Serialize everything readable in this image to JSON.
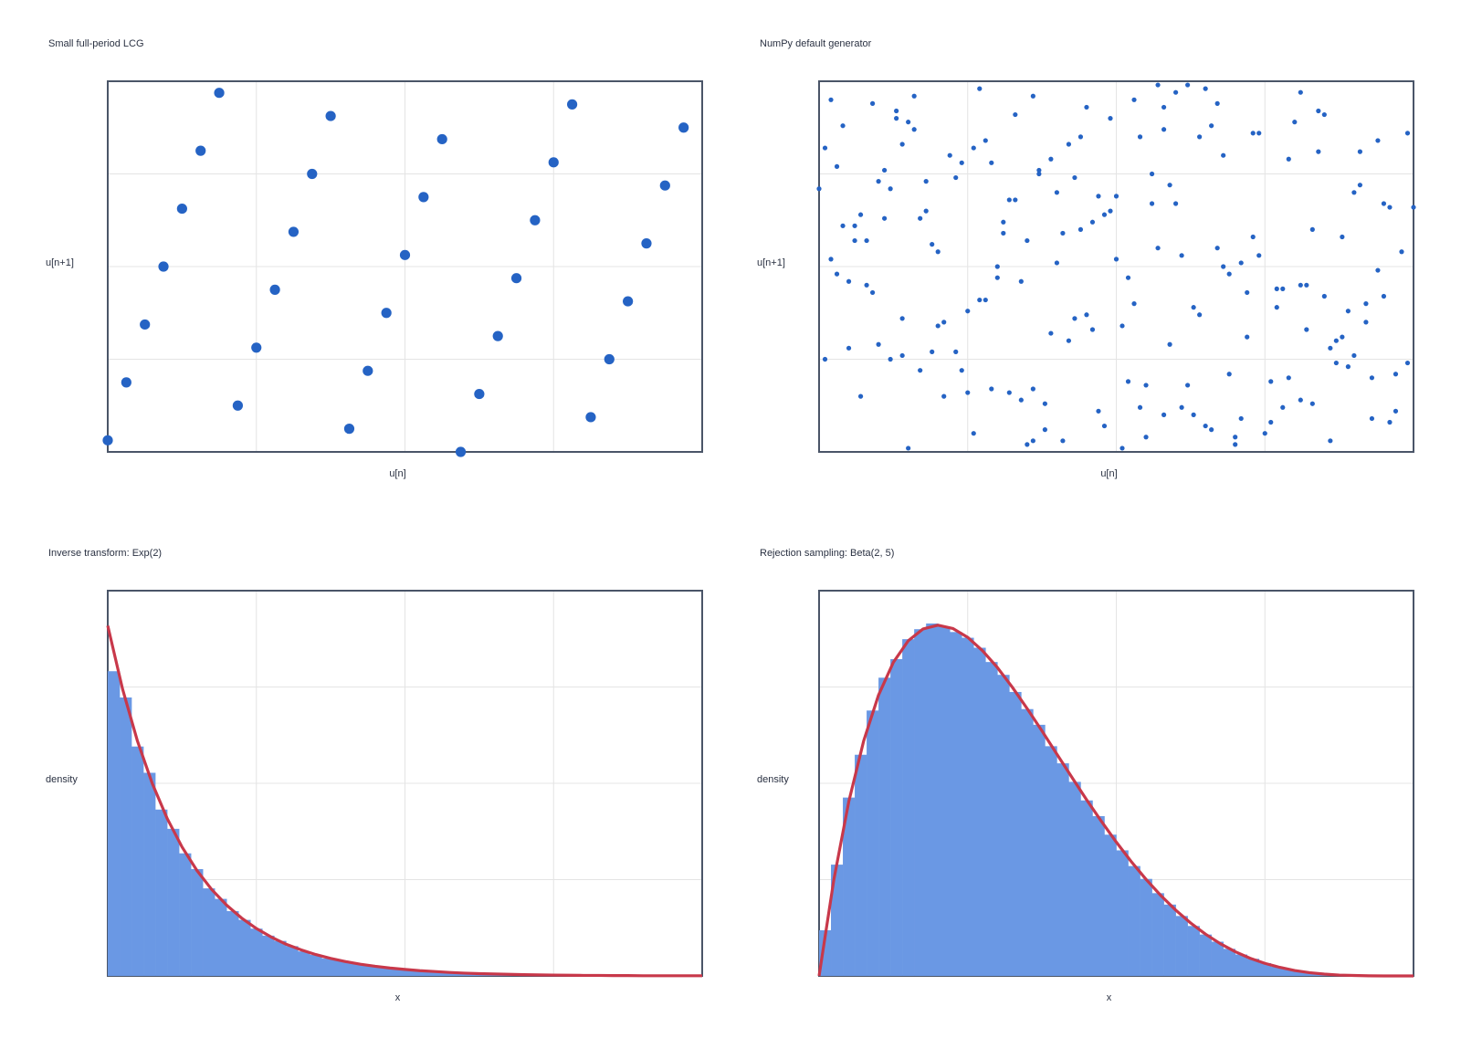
{
  "chart_data": [
    {
      "type": "scatter",
      "title": "Small full-period LCG",
      "xlabel": "u[n]",
      "ylabel": "u[n+1]",
      "color": "#2563c4",
      "x": [
        0,
        0.03125,
        0.0625,
        0.09375,
        0.125,
        0.15625,
        0.1875,
        0.21875,
        0.25,
        0.28125,
        0.3125,
        0.34375,
        0.375,
        0.40625,
        0.4375,
        0.46875,
        0.5,
        0.53125,
        0.5625,
        0.59375,
        0.625,
        0.65625,
        0.6875,
        0.71875,
        0.75,
        0.78125,
        0.8125,
        0.84375,
        0.875,
        0.90625,
        0.9375,
        0.96875
      ],
      "values": [
        0.03125,
        0.1875,
        0.34375,
        0.5,
        0.65625,
        0.8125,
        0.96875,
        0.125,
        0.28125,
        0.4375,
        0.59375,
        0.75,
        0.90625,
        0.0625,
        0.21875,
        0.375,
        0.53125,
        0.6875,
        0.84375,
        0,
        0.15625,
        0.3125,
        0.46875,
        0.625,
        0.78125,
        0.9375,
        0.09375,
        0.25,
        0.40625,
        0.5625,
        0.71875,
        0.875
      ],
      "xlim": [
        0,
        1
      ],
      "ylim": [
        0,
        1
      ],
      "xticks": [
        0,
        0.25,
        0.5,
        0.75,
        1
      ],
      "yticks": [
        0,
        0.25,
        0.5,
        0.75,
        1
      ],
      "grid": true
    },
    {
      "type": "scatter",
      "title": "NumPy default generator",
      "xlabel": "u[n]",
      "ylabel": "u[n+1]",
      "color": "#2563c4",
      "x": [
        0.12,
        0.87,
        0.45,
        0.03,
        0.66,
        0.31,
        0.92,
        0.58,
        0.21,
        0.74,
        0.39,
        0.05,
        0.81,
        0.27,
        0.63,
        0.96,
        0.14,
        0.52,
        0.35,
        0.7,
        0.08,
        0.49,
        0.88,
        0.23,
        0.61,
        0.41,
        0.99,
        0.17,
        0.77,
        0.33,
        0.55,
        0.02,
        0.68,
        0.29,
        0.84,
        0.46,
        0.11,
        0.93,
        0.37,
        0.72,
        0.19,
        0.57,
        0.81,
        0.06,
        0.44,
        0.64,
        0.26,
        0.91,
        0.5,
        0.15,
        0.79,
        0.34,
        0.6,
        0.97,
        0.09,
        0.42,
        0.73,
        0.24,
        0.86,
        0.53,
        0.01,
        0.38,
        0.67,
        0.13,
        0.9,
        0.47,
        0.3,
        0.76,
        0.56,
        0.2,
        0.83,
        0.04,
        0.62,
        0.36,
        0.95,
        0.18,
        0.51,
        0.71,
        0.28,
        0.89,
        0.43,
        0.1,
        0.65,
        0.32,
        0.98,
        0.59,
        0.22,
        0.78,
        0.07,
        0.48,
        0.85,
        0.25,
        0.69,
        0.4,
        0.94,
        0.16,
        0.54,
        0.82,
        0.31,
        0.03,
        0.75,
        0.46,
        0.12,
        0.58,
        0.92,
        0.36,
        0.64,
        0.19,
        0.87,
        0.5,
        0.27,
        0.71,
        0.05,
        0.43,
        0.97,
        0.61,
        0.14,
        0.8,
        0.34,
        0.56,
        0.09,
        0.68,
        0.41,
        0.88,
        0.23,
        0.53,
        0.0,
        0.76,
        0.3,
        0.94,
        0.47,
        0.17,
        0.63,
        0.84,
        0.38,
        0.11,
        0.72,
        0.57,
        0.26,
        0.99,
        0.44,
        0.07,
        0.66,
        0.21,
        0.9,
        0.52,
        0.35,
        0.79,
        0.14,
        0.6,
        0.02,
        0.83,
        0.49,
        0.28,
        0.74,
        0.96,
        0.18,
        0.39,
        0.67,
        0.08,
        0.55,
        0.81,
        0.32,
        0.13,
        0.7,
        0.45,
        0.91,
        0.24,
        0.62,
        0.04,
        0.86,
        0.37,
        0.58,
        0.2,
        0.77,
        1.0,
        0.42,
        0.15,
        0.69,
        0.51,
        0.29,
        0.93,
        0.06,
        0.65,
        0.33,
        0.85,
        0.48,
        0.1,
        0.73,
        0.25,
        0.59,
        0.89,
        0.16,
        0.4,
        0.78,
        0.54,
        0.01,
        0.95,
        0.36,
        0.82
      ],
      "values": [
        0.71,
        0.24,
        0.93,
        0.48,
        0.06,
        0.62,
        0.35,
        0.87,
        0.15,
        0.53,
        0.79,
        0.28,
        0.97,
        0.41,
        0.1,
        0.66,
        0.83,
        0.19,
        0.57,
        0.02,
        0.45,
        0.9,
        0.31,
        0.74,
        0.12,
        0.59,
        0.86,
        0.22,
        0.39,
        0.68,
        0.04,
        0.95,
        0.5,
        0.17,
        0.81,
        0.33,
        0.63,
        0.09,
        0.76,
        0.43,
        0.27,
        0.99,
        0.14,
        0.61,
        0.85,
        0.37,
        0.05,
        0.72,
        0.52,
        0.89,
        0.2,
        0.46,
        0.67,
        0.11,
        0.94,
        0.3,
        0.58,
        0.78,
        0.03,
        0.4,
        0.82,
        0.13,
        0.55,
        0.92,
        0.26,
        0.69,
        0.47,
        0.08,
        0.75,
        0.34,
        0.6,
        0.88,
        0.18,
        0.96,
        0.42,
        0.65,
        0.01,
        0.51,
        0.84,
        0.23,
        0.36,
        0.73,
        0.98,
        0.16,
        0.54,
        0.29,
        0.8,
        0.44,
        0.64,
        0.07,
        0.91,
        0.38,
        0.21,
        0.7,
        0.49,
        0.87,
        0.12,
        0.33,
        0.59,
        0.77,
        0.05,
        0.62,
        0.25,
        0.93,
        0.4,
        0.17,
        0.85,
        0.56,
        0.3,
        0.69,
        0.98,
        0.09,
        0.46,
        0.74,
        0.21,
        0.53,
        0.36,
        0.89,
        0.14,
        0.67,
        0.43,
        0.8,
        0.03,
        0.58,
        0.27,
        0.95,
        0.71,
        0.19,
        0.5,
        0.84,
        0.11,
        0.63,
        0.39,
        0.92,
        0.06,
        0.76,
        0.31,
        0.55,
        0.82,
        0.24,
        0.6,
        0.15,
        0.88,
        0.35,
        0.7,
        0.47,
        0.02,
        0.79,
        0.26,
        0.97,
        0.52,
        0.13,
        0.65,
        0.41,
        0.86,
        0.08,
        0.73,
        0.32,
        0.94,
        0.57,
        0.18,
        0.45,
        0.68,
        0.9,
        0.04,
        0.37,
        0.81,
        0.22,
        0.99,
        0.61,
        0.28,
        0.75,
        0.1,
        0.54,
        0.44,
        0.66,
        0.83,
        0.01,
        0.48,
        0.34,
        0.78,
        0.2,
        0.57,
        0.07,
        0.91,
        0.42,
        0.64,
        0.29,
        0.86,
        0.16,
        0.72,
        0.38,
        0.96,
        0.51,
        0.12,
        0.85,
        0.25,
        0.67,
        0.03,
        0.45
      ],
      "xlim": [
        0,
        1
      ],
      "ylim": [
        0,
        1
      ],
      "xticks": [
        0,
        0.25,
        0.5,
        0.75,
        1
      ],
      "yticks": [
        0,
        0.25,
        0.5,
        0.75,
        1
      ],
      "grid": true
    },
    {
      "type": "histogram",
      "title": "Inverse transform: Exp(2)",
      "xlabel": "x",
      "ylabel": "density",
      "color": "#6a98e4",
      "bins": [
        0,
        0.08,
        0.16,
        0.24,
        0.32,
        0.4,
        0.48,
        0.56,
        0.64,
        0.72,
        0.8,
        0.88,
        0.96,
        1.04,
        1.12,
        1.2,
        1.28,
        1.36,
        1.44,
        1.52,
        1.6,
        1.68,
        1.76,
        1.84,
        1.92,
        2,
        2.08,
        2.16,
        2.24,
        2.32,
        2.4,
        2.48,
        2.56,
        2.64,
        2.72,
        2.8,
        2.88,
        2.96,
        3.04,
        3.12,
        3.2,
        3.28,
        3.36,
        3.44,
        3.52,
        3.6,
        3.68,
        3.76,
        3.84,
        3.92,
        4
      ],
      "values": [
        1.74,
        1.59,
        1.31,
        1.16,
        0.95,
        0.84,
        0.7,
        0.61,
        0.5,
        0.44,
        0.37,
        0.32,
        0.27,
        0.23,
        0.2,
        0.17,
        0.14,
        0.12,
        0.1,
        0.09,
        0.075,
        0.064,
        0.055,
        0.046,
        0.04,
        0.034,
        0.029,
        0.024,
        0.021,
        0.018,
        0.015,
        0.013,
        0.011,
        0.009,
        0.008,
        0.007,
        0.006,
        0.005,
        0.004,
        0.004,
        0.003,
        0.003,
        0.002,
        0.002,
        0.002,
        0.001,
        0.001,
        0.001,
        0.001,
        0.001
      ],
      "curve": {
        "color": "#c8384a",
        "x": [
          0,
          0.1,
          0.2,
          0.3,
          0.4,
          0.5,
          0.6,
          0.7,
          0.8,
          0.9,
          1,
          1.1,
          1.2,
          1.3,
          1.4,
          1.5,
          1.6,
          1.7,
          1.8,
          1.9,
          2,
          2.1,
          2.2,
          2.3,
          2.4,
          2.5,
          2.6,
          2.7,
          2.8,
          2.9,
          3,
          3.1,
          3.2,
          3.3,
          3.4,
          3.5,
          3.6,
          3.7,
          3.8,
          3.9,
          4
        ],
        "values": [
          2,
          1.637,
          1.341,
          1.098,
          0.899,
          0.736,
          0.602,
          0.493,
          0.404,
          0.331,
          0.271,
          0.222,
          0.181,
          0.149,
          0.122,
          0.1,
          0.082,
          0.067,
          0.055,
          0.045,
          0.037,
          0.03,
          0.025,
          0.02,
          0.016,
          0.013,
          0.011,
          0.009,
          0.007,
          0.006,
          0.005,
          0.004,
          0.003,
          0.003,
          0.002,
          0.002,
          0.001,
          0.001,
          0.001,
          0.001,
          0.001
        ]
      },
      "xlim": [
        0,
        4
      ],
      "ylim": [
        0,
        2.2
      ],
      "xticks": [
        0,
        1,
        2,
        3,
        4
      ],
      "yticks": [
        0,
        0.55,
        1.1,
        1.65,
        2.2
      ],
      "grid": true
    },
    {
      "type": "histogram",
      "title": "Rejection sampling: Beta(2, 5)",
      "xlabel": "x",
      "ylabel": "density",
      "color": "#6a98e4",
      "bins": [
        0,
        0.02,
        0.04,
        0.06,
        0.08,
        0.1,
        0.12,
        0.14,
        0.16,
        0.18,
        0.2,
        0.22,
        0.24,
        0.26,
        0.28,
        0.3,
        0.32,
        0.34,
        0.36,
        0.38,
        0.4,
        0.42,
        0.44,
        0.46,
        0.48,
        0.5,
        0.52,
        0.54,
        0.56,
        0.58,
        0.6,
        0.62,
        0.64,
        0.66,
        0.68,
        0.7,
        0.72,
        0.74,
        0.76,
        0.78,
        0.8,
        0.82,
        0.84,
        0.86,
        0.88,
        0.9,
        0.92,
        0.94,
        0.96,
        0.98,
        1
      ],
      "values": [
        0.32,
        0.78,
        1.25,
        1.55,
        1.86,
        2.09,
        2.22,
        2.36,
        2.43,
        2.47,
        2.45,
        2.41,
        2.37,
        2.3,
        2.2,
        2.11,
        1.99,
        1.87,
        1.76,
        1.61,
        1.49,
        1.36,
        1.23,
        1.12,
        0.99,
        0.88,
        0.77,
        0.68,
        0.58,
        0.5,
        0.42,
        0.35,
        0.29,
        0.24,
        0.19,
        0.15,
        0.12,
        0.09,
        0.065,
        0.046,
        0.032,
        0.021,
        0.013,
        0.007,
        0.004,
        0.002,
        0.001,
        0,
        0,
        0
      ],
      "curve": {
        "color": "#c8384a",
        "x": [
          0,
          0.025,
          0.05,
          0.075,
          0.1,
          0.125,
          0.15,
          0.175,
          0.2,
          0.225,
          0.25,
          0.275,
          0.3,
          0.325,
          0.35,
          0.375,
          0.4,
          0.425,
          0.45,
          0.475,
          0.5,
          0.525,
          0.55,
          0.575,
          0.6,
          0.625,
          0.65,
          0.675,
          0.7,
          0.725,
          0.75,
          0.775,
          0.8,
          0.825,
          0.85,
          0.875,
          0.9,
          0.925,
          0.95,
          0.975,
          1
        ],
        "values": [
          0,
          0.678,
          1.222,
          1.647,
          1.968,
          2.198,
          2.349,
          2.432,
          2.458,
          2.435,
          2.373,
          2.279,
          2.161,
          2.024,
          1.874,
          1.717,
          1.555,
          1.394,
          1.235,
          1.083,
          0.938,
          0.802,
          0.677,
          0.563,
          0.461,
          0.371,
          0.293,
          0.226,
          0.17,
          0.124,
          0.088,
          0.06,
          0.038,
          0.023,
          0.013,
          0.006,
          0.003,
          0.001,
          0,
          0,
          0
        ]
      },
      "xlim": [
        0,
        1
      ],
      "ylim": [
        0,
        2.7
      ],
      "xticks": [
        0,
        0.25,
        0.5,
        0.75,
        1
      ],
      "yticks": [
        0,
        0.675,
        1.35,
        2.025,
        2.7
      ],
      "grid": true
    }
  ]
}
